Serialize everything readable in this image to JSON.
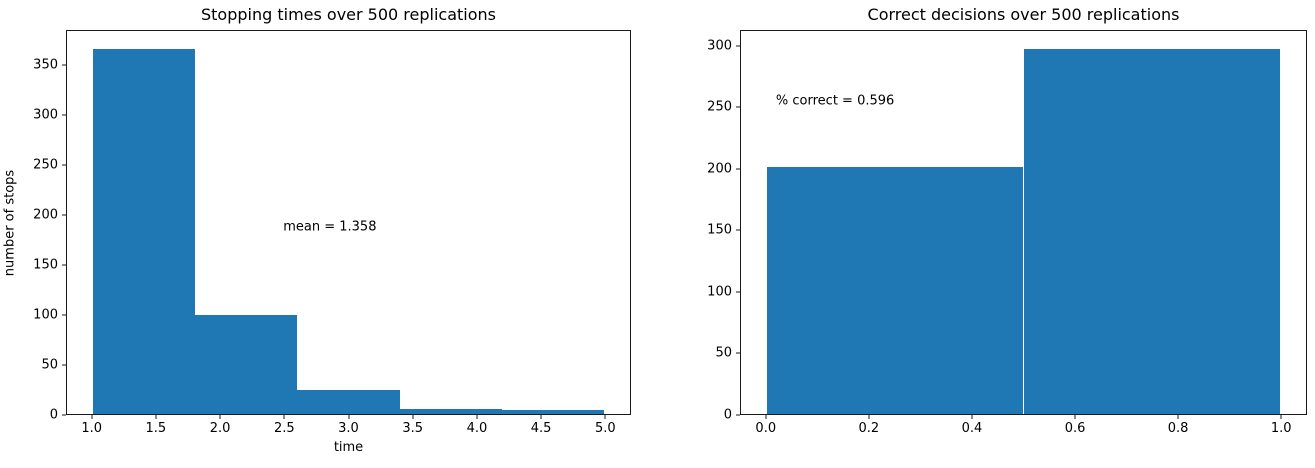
{
  "figure": {
    "background": "#ffffff",
    "text_color": "#000000",
    "spine_color": "#1a1a1a"
  },
  "chart_data": [
    {
      "type": "bar",
      "subtype": "histogram",
      "title": "Stopping times over 500 replications",
      "xlabel": "time",
      "ylabel": "number of stops",
      "bar_color": "#1f77b4",
      "bin_edges": [
        1.0,
        1.8,
        2.6,
        3.4,
        4.2,
        5.0
      ],
      "counts": [
        367,
        100,
        24,
        5,
        4
      ],
      "xlim": [
        0.8,
        5.2
      ],
      "ylim": [
        0,
        385.4
      ],
      "grid": false,
      "legend": "none",
      "xticks": [
        {
          "value": 1.0,
          "label": "1.0"
        },
        {
          "value": 1.5,
          "label": "1.5"
        },
        {
          "value": 2.0,
          "label": "2.0"
        },
        {
          "value": 2.5,
          "label": "2.5"
        },
        {
          "value": 3.0,
          "label": "3.0"
        },
        {
          "value": 3.5,
          "label": "3.5"
        },
        {
          "value": 4.0,
          "label": "4.0"
        },
        {
          "value": 4.5,
          "label": "4.5"
        },
        {
          "value": 5.0,
          "label": "5.0"
        }
      ],
      "yticks": [
        {
          "value": 0,
          "label": "0"
        },
        {
          "value": 50,
          "label": "50"
        },
        {
          "value": 100,
          "label": "100"
        },
        {
          "value": 150,
          "label": "150"
        },
        {
          "value": 200,
          "label": "200"
        },
        {
          "value": 250,
          "label": "250"
        },
        {
          "value": 300,
          "label": "300"
        },
        {
          "value": 350,
          "label": "350"
        }
      ],
      "annotation": {
        "text": "mean = 1.358",
        "x": 2.49,
        "y": 188
      }
    },
    {
      "type": "bar",
      "subtype": "histogram",
      "title": "Correct decisions over 500 replications",
      "xlabel": "",
      "ylabel": "",
      "bar_color": "#1f77b4",
      "bin_edges": [
        0.0,
        0.5,
        1.0
      ],
      "counts": [
        202,
        298
      ],
      "xlim": [
        -0.05,
        1.05
      ],
      "ylim": [
        0,
        312.9
      ],
      "grid": false,
      "legend": "none",
      "xticks": [
        {
          "value": 0.0,
          "label": "0.0"
        },
        {
          "value": 0.2,
          "label": "0.2"
        },
        {
          "value": 0.4,
          "label": "0.4"
        },
        {
          "value": 0.6,
          "label": "0.6"
        },
        {
          "value": 0.8,
          "label": "0.8"
        },
        {
          "value": 1.0,
          "label": "1.0"
        }
      ],
      "yticks": [
        {
          "value": 0,
          "label": "0"
        },
        {
          "value": 50,
          "label": "50"
        },
        {
          "value": 100,
          "label": "100"
        },
        {
          "value": 150,
          "label": "150"
        },
        {
          "value": 200,
          "label": "200"
        },
        {
          "value": 250,
          "label": "250"
        },
        {
          "value": 300,
          "label": "300"
        }
      ],
      "annotation": {
        "text": "% correct = 0.596",
        "x": 0.018,
        "y": 256
      }
    }
  ]
}
